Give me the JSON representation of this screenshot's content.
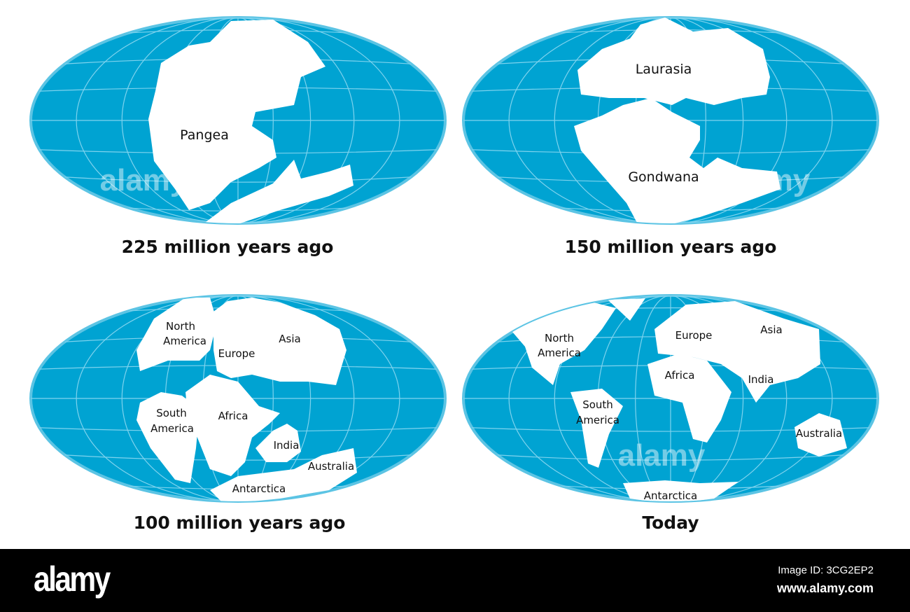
{
  "colors": {
    "ocean": "#00a3d2",
    "rim": "#5cc4e4",
    "grid": "#7fd3ee",
    "land": "#ffffff"
  },
  "maps": [
    {
      "caption": "225 million years ago",
      "labels": [
        "Pangea"
      ]
    },
    {
      "caption": "150 million years ago",
      "labels": [
        "Laurasia",
        "Gondwana"
      ]
    },
    {
      "caption": "100 million years ago",
      "labels": [
        "North",
        "America",
        "Europe",
        "Asia",
        "South",
        "America",
        "Africa",
        "India",
        "Australia",
        "Antarctica"
      ]
    },
    {
      "caption": "Today",
      "labels": [
        "North",
        "America",
        "Europe",
        "Asia",
        "Africa",
        "India",
        "South",
        "America",
        "Australia",
        "Antarctica"
      ]
    }
  ],
  "watermark": "alamy",
  "footer": {
    "brand": "alamy",
    "image_id": "Image ID: 3CG2EP2",
    "url": "www.alamy.com"
  }
}
